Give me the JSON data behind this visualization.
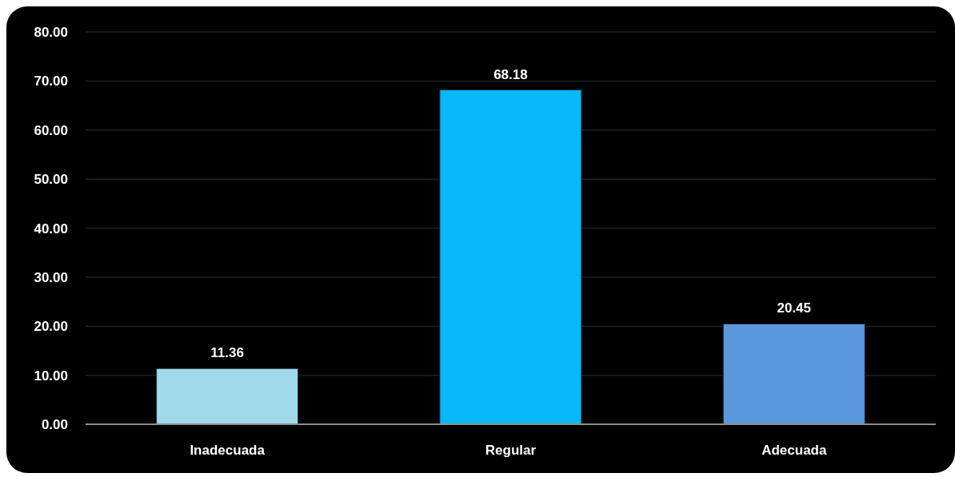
{
  "chart_data": {
    "type": "bar",
    "categories": [
      "Inadecuada",
      "Regular",
      "Adecuada"
    ],
    "values": [
      11.36,
      68.18,
      20.45
    ],
    "colors": [
      "#a0d9ea",
      "#05b9fb",
      "#5b97dc"
    ],
    "ylim": [
      0,
      80
    ],
    "yticks": [
      {
        "value": 0,
        "label": "0.00"
      },
      {
        "value": 10,
        "label": "10.00"
      },
      {
        "value": 20,
        "label": "20.00"
      },
      {
        "value": 30,
        "label": "30.00"
      },
      {
        "value": 40,
        "label": "40.00"
      },
      {
        "value": 50,
        "label": "50.00"
      },
      {
        "value": 60,
        "label": "60.00"
      },
      {
        "value": 70,
        "label": "70.00"
      },
      {
        "value": 80,
        "label": "80.00"
      }
    ],
    "grid": "y",
    "data_labels": true
  }
}
